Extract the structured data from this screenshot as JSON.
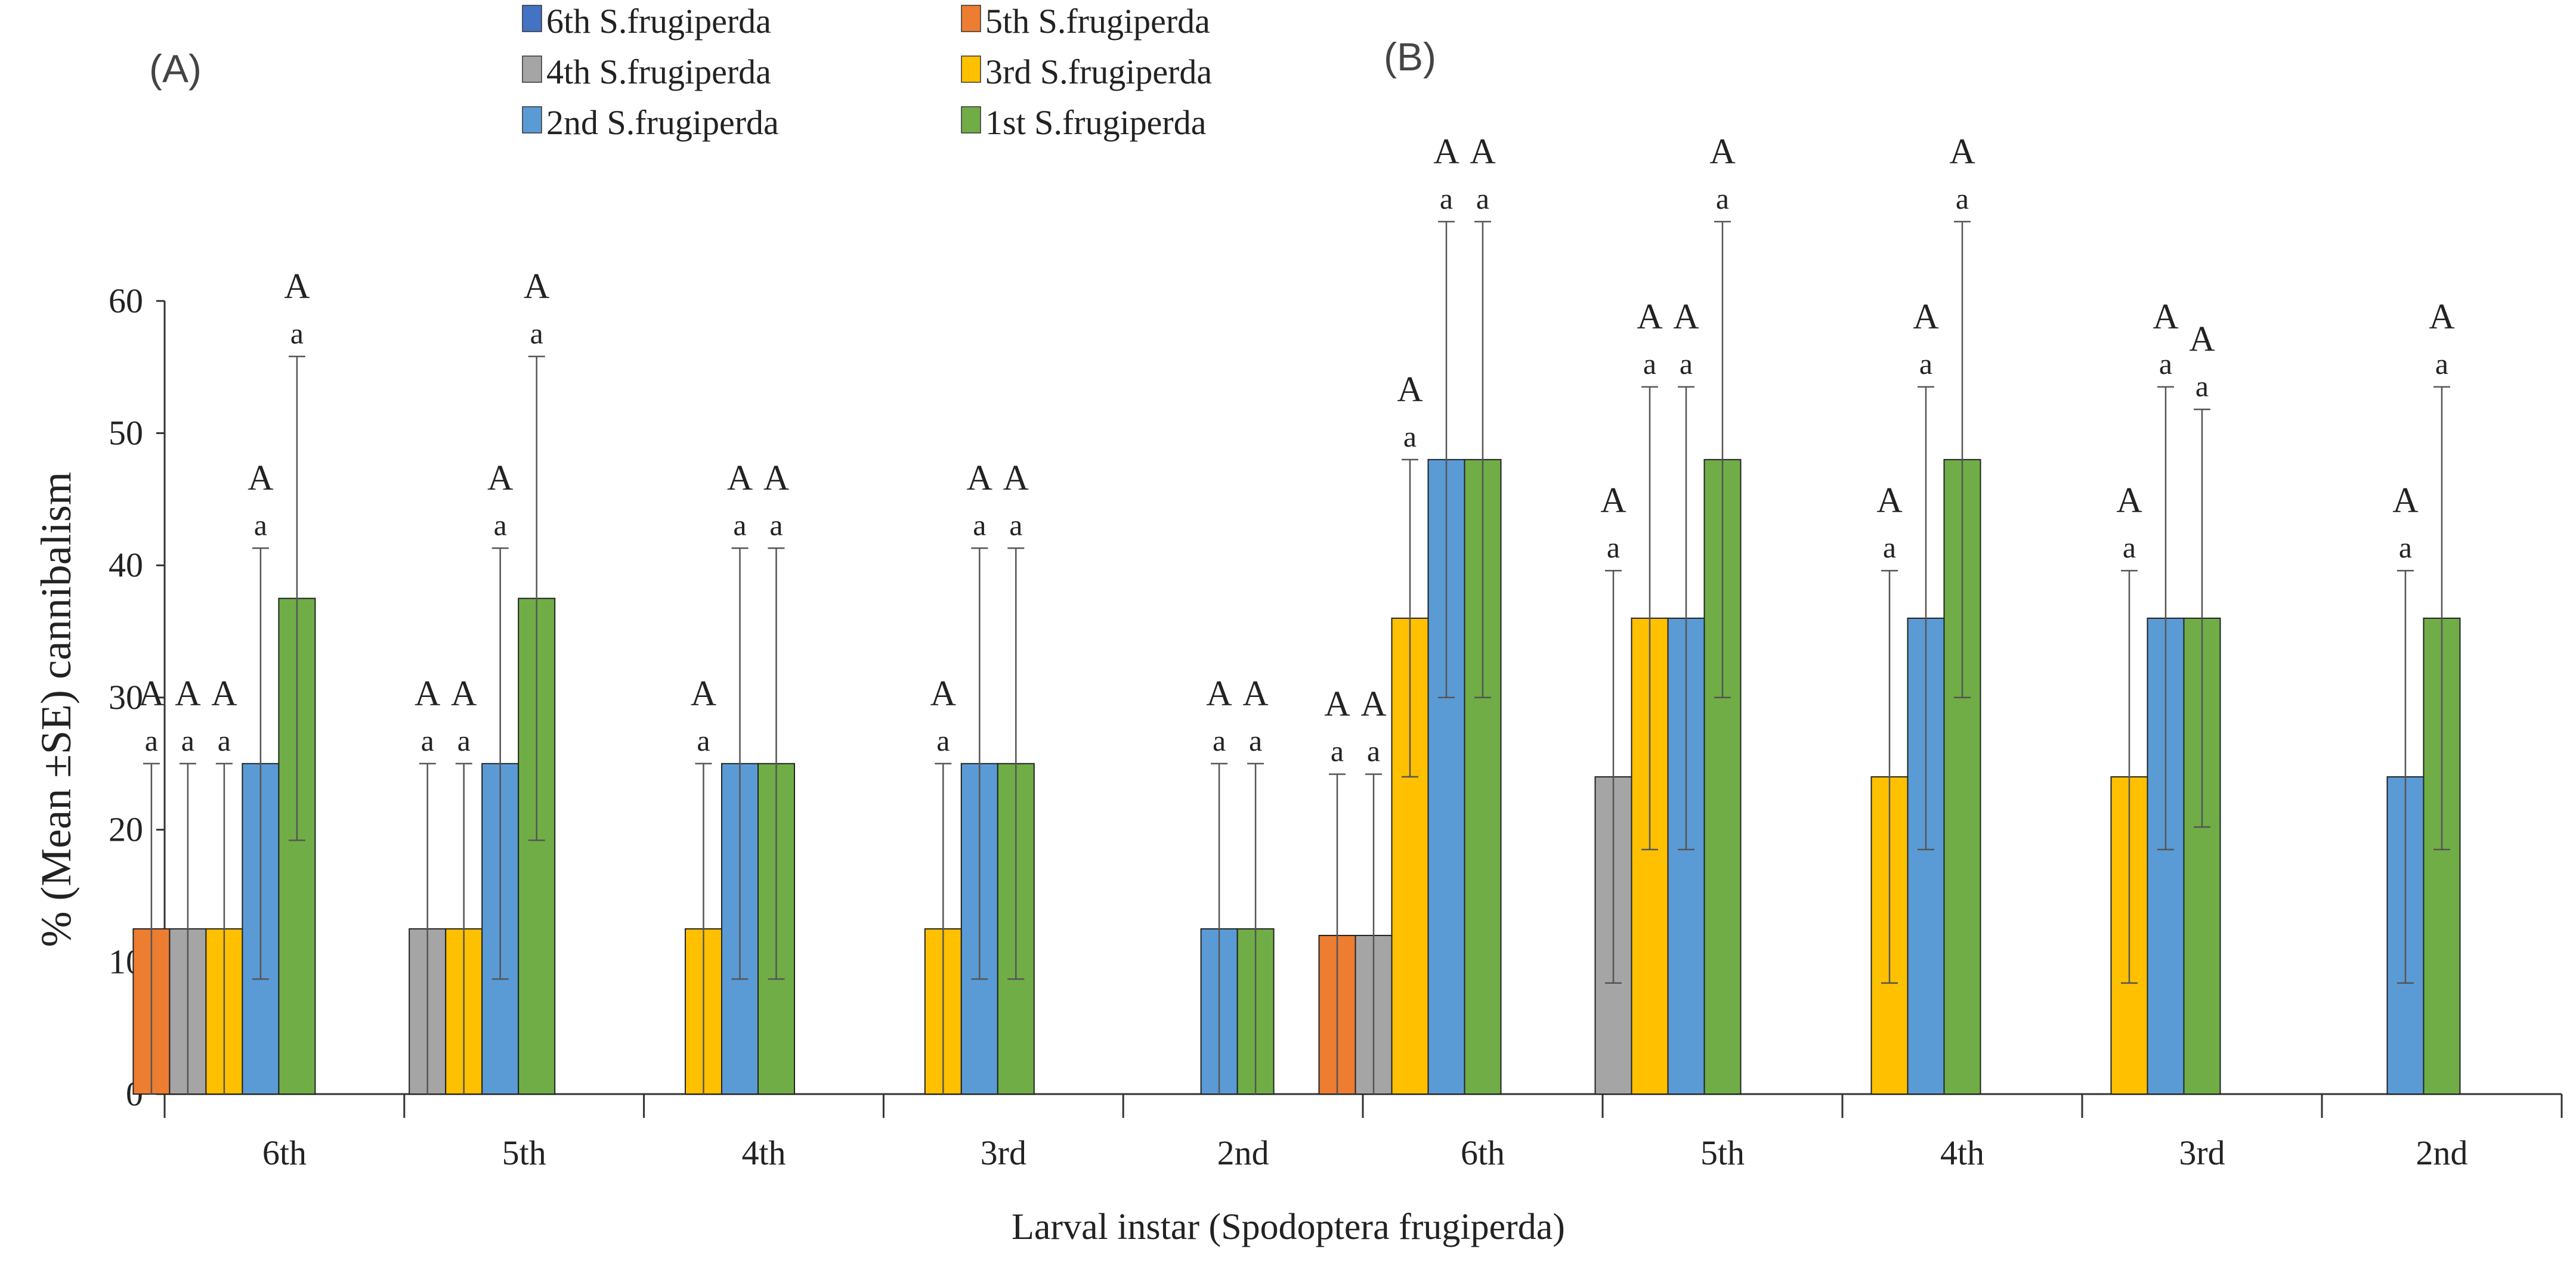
{
  "chart_data": {
    "type": "bar",
    "x_title": "Larval instar (Spodoptera frugiperda)",
    "y_title": "% (Mean ±SE) cannibalism",
    "ylim": [
      0,
      60
    ],
    "yticks": [
      "0",
      "10",
      "20",
      "30",
      "40",
      "50",
      "60"
    ],
    "categories": [
      "6th",
      "5th",
      "4th",
      "3rd",
      "2nd"
    ],
    "legend": [
      {
        "name": "6th S.frugiperda",
        "color": "#4472C4"
      },
      {
        "name": "5th S.frugiperda",
        "color": "#ED7D31"
      },
      {
        "name": "4th S.frugiperda",
        "color": "#A5A5A5"
      },
      {
        "name": "3rd S.frugiperda",
        "color": "#FFC000"
      },
      {
        "name": "2nd S.frugiperda",
        "color": "#5B9BD5"
      },
      {
        "name": "1st S.frugiperda",
        "color": "#70AD47"
      }
    ],
    "series_colors": {
      "5th": "#ED7D31",
      "4th": "#A5A5A5",
      "3rd": "#FFC000",
      "2nd": "#5B9BD5",
      "1st": "#70AD47"
    },
    "panels": [
      {
        "label": "(A)",
        "groups": [
          {
            "category": "6th",
            "bars": [
              {
                "series": "5th",
                "value": 12.5,
                "err": 12.5,
                "upper": "A",
                "lower": "a"
              },
              {
                "series": "4th",
                "value": 12.5,
                "err": 12.5,
                "upper": "A",
                "lower": "a"
              },
              {
                "series": "3rd",
                "value": 12.5,
                "err": 12.5,
                "upper": "A",
                "lower": "a"
              },
              {
                "series": "2nd",
                "value": 25,
                "err": 16.3,
                "upper": "A",
                "lower": "a"
              },
              {
                "series": "1st",
                "value": 37.5,
                "err": 18.3,
                "upper": "A",
                "lower": "a"
              }
            ]
          },
          {
            "category": "5th",
            "bars": [
              {
                "series": "4th",
                "value": 12.5,
                "err": 12.5,
                "upper": "A",
                "lower": "a"
              },
              {
                "series": "3rd",
                "value": 12.5,
                "err": 12.5,
                "upper": "A",
                "lower": "a"
              },
              {
                "series": "2nd",
                "value": 25,
                "err": 16.3,
                "upper": "A",
                "lower": "a"
              },
              {
                "series": "1st",
                "value": 37.5,
                "err": 18.3,
                "upper": "A",
                "lower": "a"
              }
            ]
          },
          {
            "category": "4th",
            "bars": [
              {
                "series": "3rd",
                "value": 12.5,
                "err": 12.5,
                "upper": "A",
                "lower": "a"
              },
              {
                "series": "2nd",
                "value": 25,
                "err": 16.3,
                "upper": "A",
                "lower": "a"
              },
              {
                "series": "1st",
                "value": 25,
                "err": 16.3,
                "upper": "A",
                "lower": "a"
              }
            ]
          },
          {
            "category": "3rd",
            "bars": [
              {
                "series": "3rd",
                "value": 12.5,
                "err": 12.5,
                "upper": "A",
                "lower": "a"
              },
              {
                "series": "2nd",
                "value": 25,
                "err": 16.3,
                "upper": "A",
                "lower": "a"
              },
              {
                "series": "1st",
                "value": 25,
                "err": 16.3,
                "upper": "A",
                "lower": "a"
              }
            ]
          },
          {
            "category": "2nd",
            "bars": [
              {
                "series": "2nd",
                "value": 12.5,
                "err": 12.5,
                "upper": "A",
                "lower": "a"
              },
              {
                "series": "1st",
                "value": 12.5,
                "err": 12.5,
                "upper": "A",
                "lower": "a"
              }
            ]
          }
        ]
      },
      {
        "label": "(B)",
        "groups": [
          {
            "category": "6th",
            "bars": [
              {
                "series": "5th",
                "value": 12,
                "err": 12.2,
                "upper": "A",
                "lower": "a"
              },
              {
                "series": "4th",
                "value": 12,
                "err": 12.2,
                "upper": "A",
                "lower": "a"
              },
              {
                "series": "3rd",
                "value": 36,
                "err": 12,
                "upper": "A",
                "lower": "a"
              },
              {
                "series": "2nd",
                "value": 48,
                "err": 18,
                "upper": "A",
                "lower": "a"
              },
              {
                "series": "1st",
                "value": 48,
                "err": 18,
                "upper": "A",
                "lower": "a"
              }
            ]
          },
          {
            "category": "5th",
            "bars": [
              {
                "series": "4th",
                "value": 24,
                "err": 15.6,
                "upper": "A",
                "lower": "a"
              },
              {
                "series": "3rd",
                "value": 36,
                "err": 17.5,
                "upper": "A",
                "lower": "a"
              },
              {
                "series": "2nd",
                "value": 36,
                "err": 17.5,
                "upper": "A",
                "lower": "a"
              },
              {
                "series": "1st",
                "value": 48,
                "err": 18,
                "upper": "A",
                "lower": "a"
              }
            ]
          },
          {
            "category": "4th",
            "bars": [
              {
                "series": "3rd",
                "value": 24,
                "err": 15.6,
                "upper": "A",
                "lower": "a"
              },
              {
                "series": "2nd",
                "value": 36,
                "err": 17.5,
                "upper": "A",
                "lower": "a"
              },
              {
                "series": "1st",
                "value": 48,
                "err": 18,
                "upper": "A",
                "lower": "a"
              }
            ]
          },
          {
            "category": "3rd",
            "bars": [
              {
                "series": "3rd",
                "value": 24,
                "err": 15.6,
                "upper": "A",
                "lower": "a"
              },
              {
                "series": "2nd",
                "value": 36,
                "err": 17.5,
                "upper": "A",
                "lower": "a"
              },
              {
                "series": "1st",
                "value": 36,
                "err": 15.8,
                "upper": "A",
                "lower": "a"
              }
            ]
          },
          {
            "category": "2nd",
            "bars": [
              {
                "series": "2nd",
                "value": 24,
                "err": 15.6,
                "upper": "A",
                "lower": "a"
              },
              {
                "series": "1st",
                "value": 36,
                "err": 17.5,
                "upper": "A",
                "lower": "a"
              }
            ]
          }
        ]
      }
    ]
  }
}
